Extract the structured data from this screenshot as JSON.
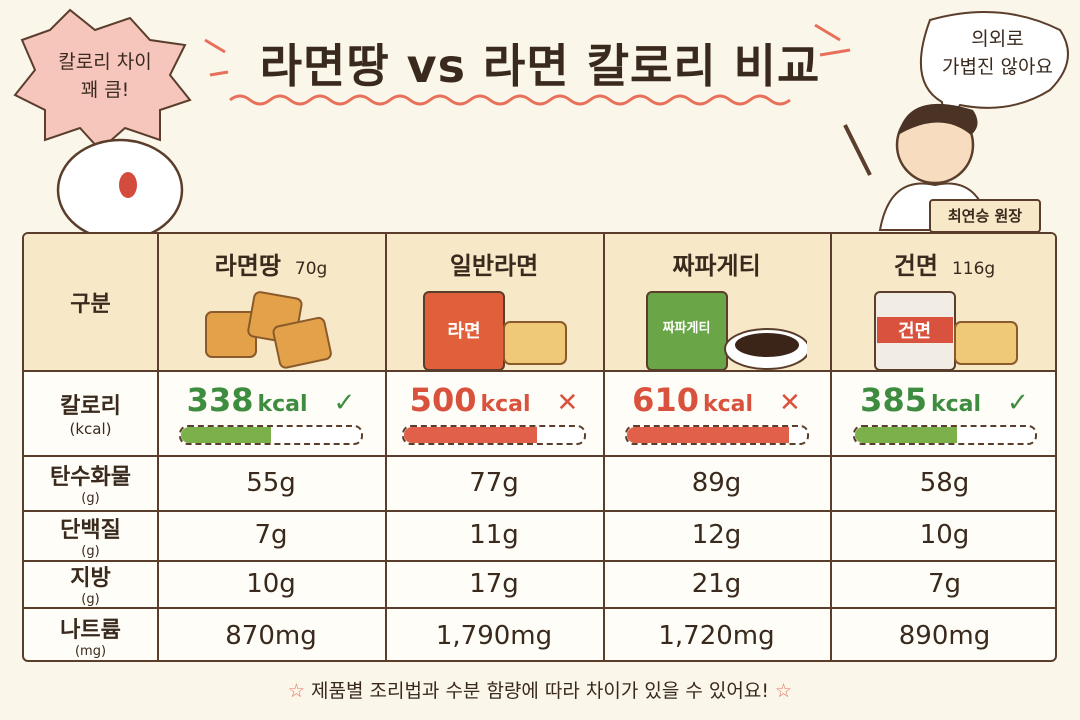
{
  "header": {
    "title": "라면땅 vs 라면 칼로리 비교",
    "left_bubble": [
      "칼로리 차이",
      "꽤 큼!"
    ],
    "right_bubble": [
      "의외로",
      "가볍진 않아요"
    ],
    "doctor_label": "최연승 원장"
  },
  "table": {
    "corner": "구분",
    "columns": [
      {
        "name": "라면땅",
        "weight": "70g"
      },
      {
        "name": "일반라면",
        "package_label": "라면"
      },
      {
        "name": "짜파게티",
        "package_label": "짜파게티"
      },
      {
        "name": "건면",
        "weight": "116g",
        "package_label": "건면"
      }
    ],
    "calorie_row": {
      "label": "칼로리",
      "unit": "(kcal)",
      "cells": [
        {
          "value": 338,
          "unit": "kcal",
          "mark": "✓",
          "color": "#3d8c40",
          "bar_color": "#7bb04a"
        },
        {
          "value": 500,
          "unit": "kcal",
          "mark": "✕",
          "color": "#d9523e",
          "bar_color": "#e0604a"
        },
        {
          "value": 610,
          "unit": "kcal",
          "mark": "✕",
          "color": "#d9523e",
          "bar_color": "#e0604a"
        },
        {
          "value": 385,
          "unit": "kcal",
          "mark": "✓",
          "color": "#3d8c40",
          "bar_color": "#7bb04a"
        }
      ]
    },
    "rows": [
      {
        "label": "탄수화물",
        "unit": "(g)",
        "values": [
          "55g",
          "77g",
          "89g",
          "58g"
        ]
      },
      {
        "label": "단백질",
        "unit": "(g)",
        "values": [
          "7g",
          "11g",
          "12g",
          "10g"
        ]
      },
      {
        "label": "지방",
        "unit": "(g)",
        "values": [
          "10g",
          "17g",
          "21g",
          "7g"
        ]
      },
      {
        "label": "나트륨",
        "unit": "(mg)",
        "values": [
          "870mg",
          "1,790mg",
          "1,720mg",
          "890mg"
        ]
      }
    ]
  },
  "footer": {
    "note": "제품별 조리법과 수분 함량에 따라 차이가 있을 수 있어요!"
  }
}
